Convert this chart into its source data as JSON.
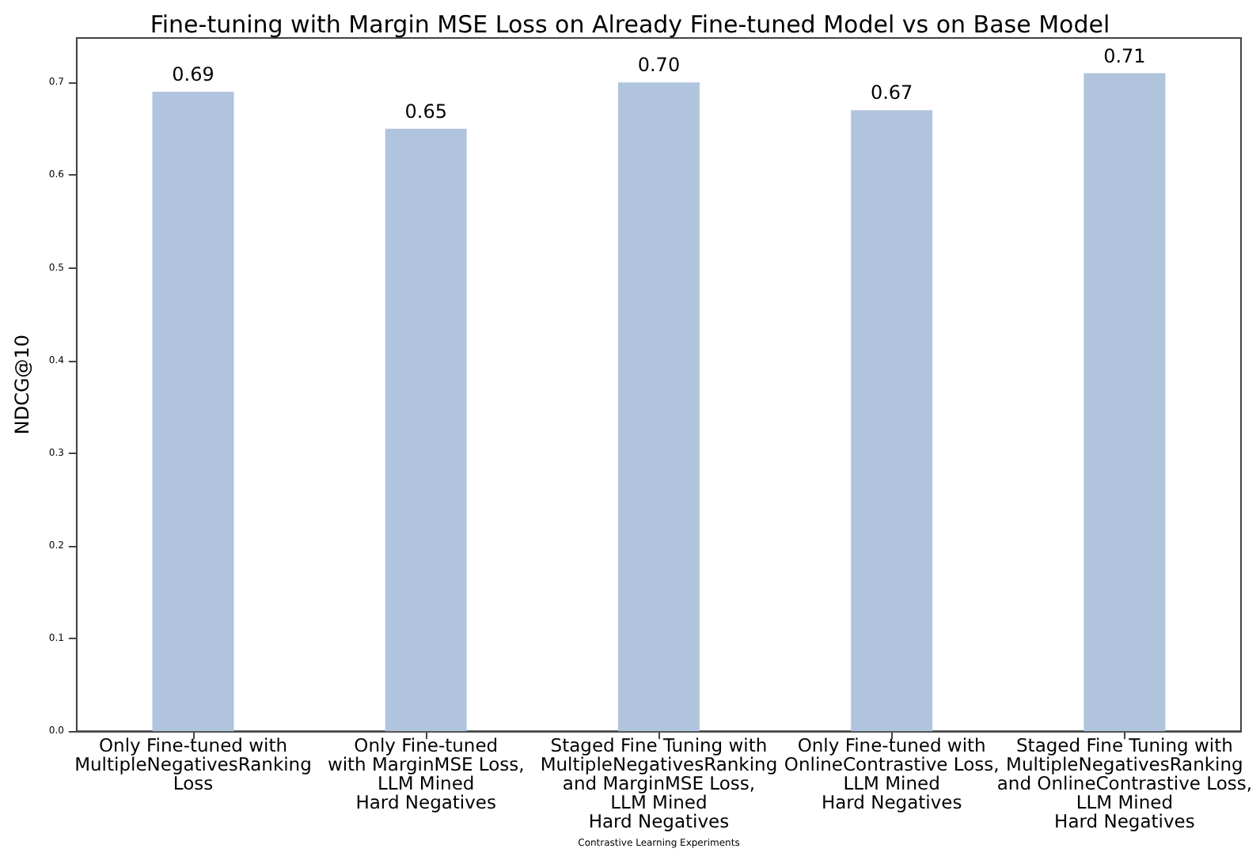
{
  "chart_data": {
    "type": "bar",
    "title": "Fine-tuning with Margin MSE Loss on Already Fine-tuned Model vs on Base Model",
    "xlabel": "Contrastive Learning Experiments",
    "ylabel": "NDCG@10",
    "categories": [
      "Only Fine-tuned with\nMultipleNegativesRanking\nLoss",
      "Only Fine-tuned\nwith MarginMSE Loss,\nLLM Mined\nHard Negatives",
      "Staged Fine Tuning with\nMultipleNegativesRanking\nand MarginMSE Loss,\nLLM Mined\nHard Negatives",
      "Only Fine-tuned with\nOnlineContrastive Loss,\nLLM Mined\nHard Negatives",
      "Staged Fine Tuning with\nMultipleNegativesRanking\nand OnlineContrastive Loss,\nLLM Mined\nHard Negatives"
    ],
    "values": [
      0.69,
      0.65,
      0.7,
      0.67,
      0.71
    ],
    "color": "#b0c4de",
    "value_labels": [
      "0.69",
      "0.65",
      "0.70",
      "0.67",
      "0.71"
    ],
    "ylim": [
      0,
      0.748
    ],
    "yticks": [
      {
        "value": 0,
        "label": "0.0"
      },
      0.1,
      0.2,
      0.3,
      0.4,
      0.5,
      0.6,
      0.7
    ],
    "grid": false
  }
}
